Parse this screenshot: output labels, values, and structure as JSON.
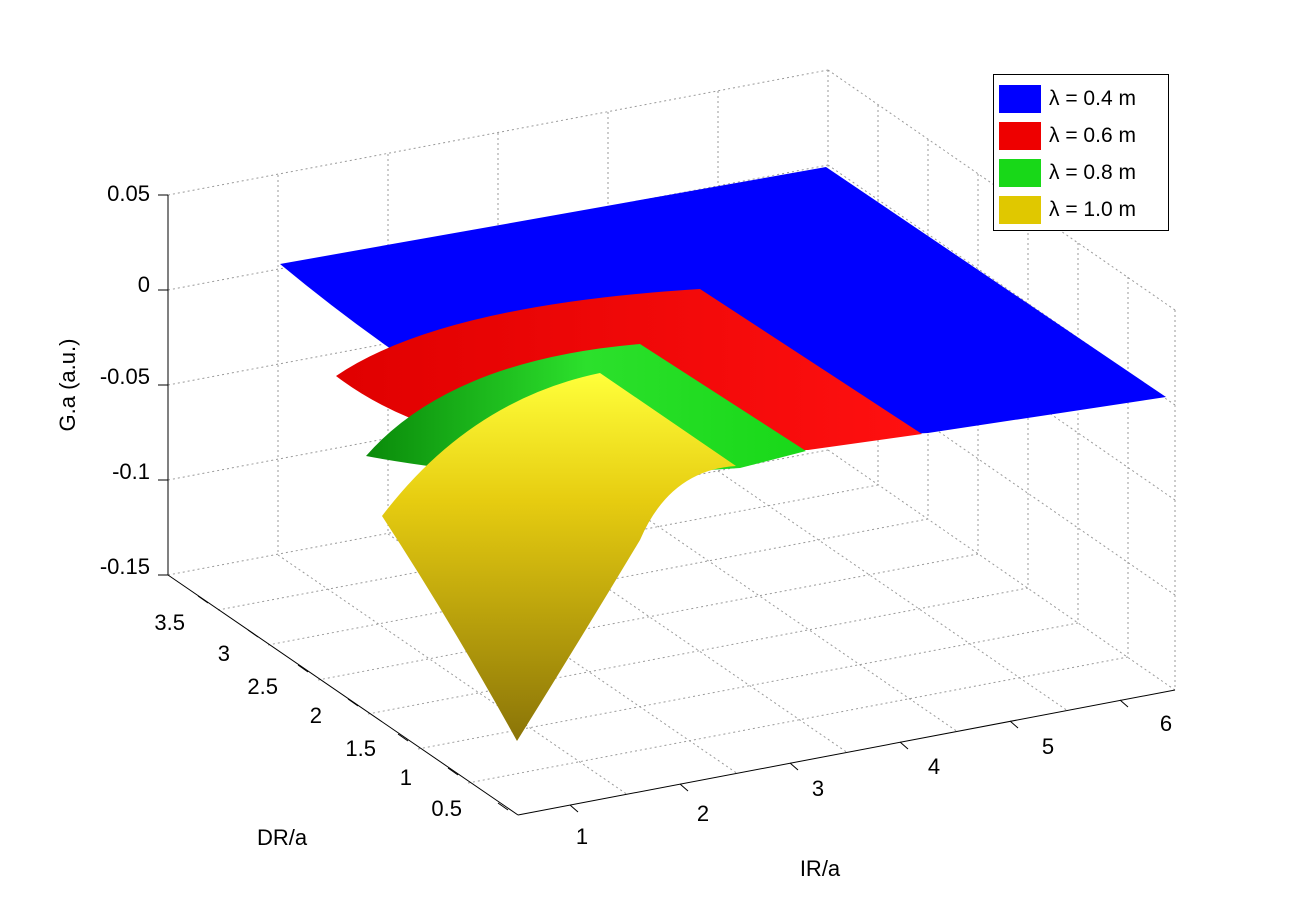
{
  "chart_data": {
    "type": "surface",
    "xlabel": "IR/a",
    "ylabel": "DR/a",
    "zlabel": "G.a (a.u.)",
    "xticks": [
      "1",
      "2",
      "3",
      "4",
      "5",
      "6"
    ],
    "yticks": [
      "0.5",
      "1",
      "1.5",
      "2",
      "2.5",
      "3",
      "3.5"
    ],
    "zticks": [
      "-0.15",
      "-0.1",
      "-0.05",
      "0",
      "0.05"
    ],
    "zlim": [
      -0.15,
      0.05
    ],
    "grid": true,
    "legend_position": "top-right",
    "series": [
      {
        "name": "λ = 0.4 m",
        "color": "#0000ff"
      },
      {
        "name": "λ = 0.6 m",
        "color": "#ee0000"
      },
      {
        "name": "λ = 0.8 m",
        "color": "#18d818"
      },
      {
        "name": "λ = 1.0 m",
        "color": "#e0c800"
      }
    ]
  }
}
